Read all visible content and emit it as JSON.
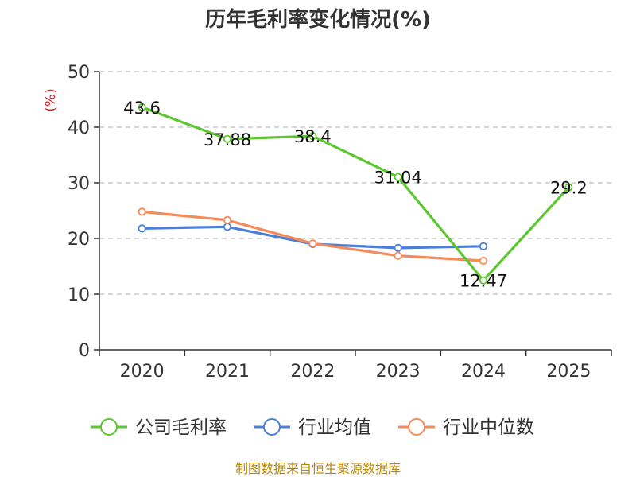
{
  "chart_data": {
    "type": "line",
    "title": "历年毛利率变化情况(%)",
    "ylabel": "(%)",
    "xlabel": "",
    "categories": [
      "2020",
      "2021",
      "2022",
      "2023",
      "2024",
      "2025"
    ],
    "ylim": [
      0,
      50
    ],
    "yticks": [
      0,
      10,
      20,
      30,
      40,
      50
    ],
    "grid": true,
    "legend_position": "bottom",
    "series": [
      {
        "name": "公司毛利率",
        "color": "#5cc72e",
        "values": [
          43.6,
          37.88,
          38.4,
          31.04,
          12.47,
          29.2
        ],
        "labels": [
          "43.6",
          "37.88",
          "38.4",
          "31.04",
          "12.47",
          "29.2"
        ]
      },
      {
        "name": "行业均值",
        "color": "#4a7fdc",
        "values": [
          21.8,
          22.1,
          19.0,
          18.3,
          18.6,
          null
        ]
      },
      {
        "name": "行业中位数",
        "color": "#f58a5a",
        "values": [
          24.8,
          23.3,
          19.1,
          16.9,
          16.0,
          null
        ]
      }
    ],
    "source": "制图数据来自恒生聚源数据库"
  }
}
